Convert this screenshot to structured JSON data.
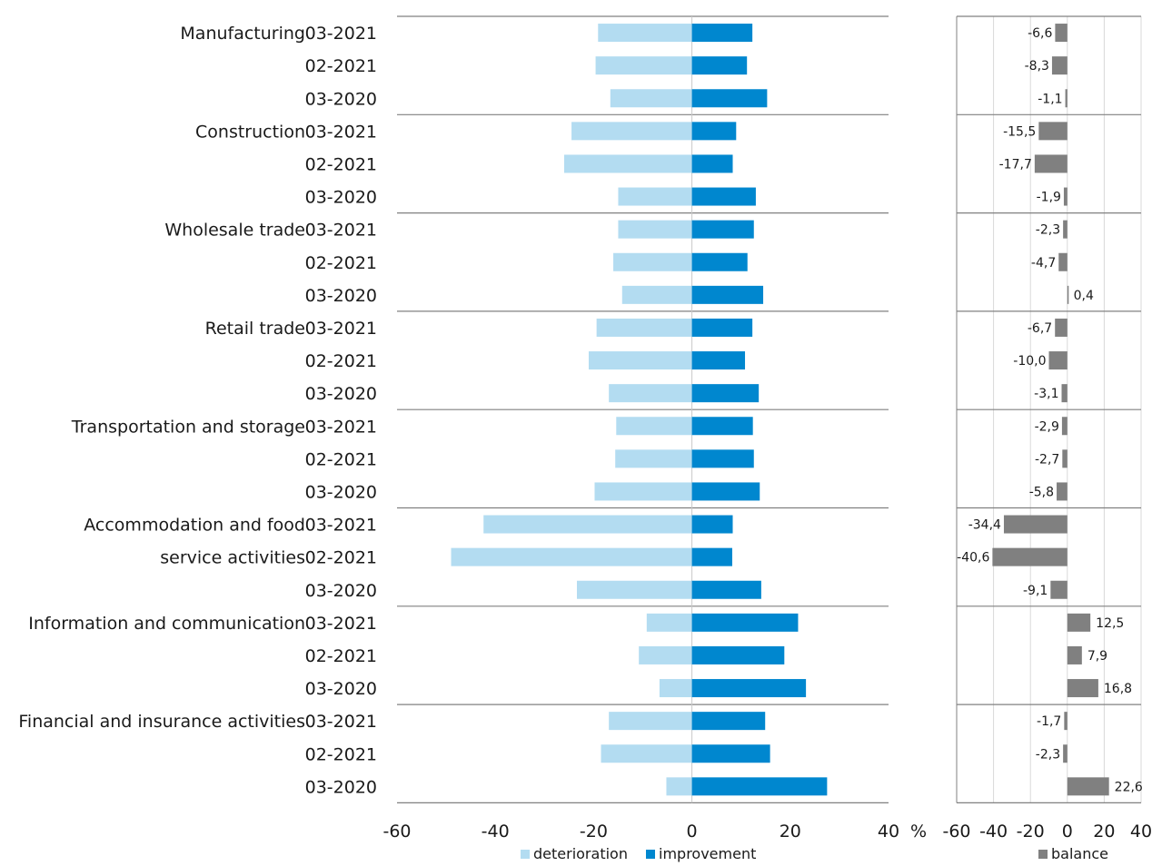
{
  "chart_data": [
    {
      "type": "bar",
      "orientation": "horizontal",
      "stacked": "diverging",
      "sectors": [
        "Manufacturing",
        "Construction",
        "Wholesale trade",
        "Retail trade",
        "Transportation and storage",
        "Accommodation and food service activities",
        "Information and communication",
        "Financial and insurance activities"
      ],
      "category_lines": [
        {
          "name": "Manufacturing",
          "period": "03-2021"
        },
        {
          "name": "",
          "period": "02-2021"
        },
        {
          "name": "",
          "period": "03-2020"
        },
        {
          "name": "Construction",
          "period": "03-2021"
        },
        {
          "name": "",
          "period": "02-2021"
        },
        {
          "name": "",
          "period": "03-2020"
        },
        {
          "name": "Wholesale trade",
          "period": "03-2021"
        },
        {
          "name": "",
          "period": "02-2021"
        },
        {
          "name": "",
          "period": "03-2020"
        },
        {
          "name": "Retail trade",
          "period": "03-2021"
        },
        {
          "name": "",
          "period": "02-2021"
        },
        {
          "name": "",
          "period": "03-2020"
        },
        {
          "name": "Transportation and storage",
          "period": "03-2021"
        },
        {
          "name": "",
          "period": "02-2021"
        },
        {
          "name": "",
          "period": "03-2020"
        },
        {
          "name": "Accommodation and food",
          "period": "03-2021"
        },
        {
          "name": "service activities",
          "period": "02-2021"
        },
        {
          "name": "",
          "period": "03-2020"
        },
        {
          "name": "Information and communication",
          "period": "03-2021"
        },
        {
          "name": "",
          "period": "02-2021"
        },
        {
          "name": "",
          "period": "03-2020"
        },
        {
          "name": "Financial and insurance activities",
          "period": "03-2021"
        },
        {
          "name": "",
          "period": "02-2021"
        },
        {
          "name": "",
          "period": "03-2020"
        }
      ],
      "series": [
        {
          "name": "deterioration",
          "color": "#b3dcf1",
          "values": [
            -19.1,
            -19.6,
            -16.6,
            -24.5,
            -26.0,
            -15.0,
            -15.0,
            -16.0,
            -14.2,
            -19.4,
            -21.0,
            -16.9,
            -15.4,
            -15.6,
            -19.8,
            -42.4,
            -49.0,
            -23.4,
            -9.2,
            -10.8,
            -6.6,
            -16.9,
            -18.5,
            -5.2
          ]
        },
        {
          "name": "improvement",
          "color": "#0087cf",
          "values": [
            12.3,
            11.2,
            15.3,
            9.0,
            8.3,
            13.0,
            12.6,
            11.3,
            14.5,
            12.3,
            10.8,
            13.6,
            12.4,
            12.6,
            13.8,
            8.3,
            8.2,
            14.1,
            21.6,
            18.8,
            23.2,
            14.9,
            15.9,
            27.5
          ]
        }
      ],
      "xlim": [
        -60,
        40
      ],
      "xticks": [
        -60,
        -40,
        -20,
        0,
        20,
        40
      ],
      "xlabel": "%",
      "legend": "bottom"
    },
    {
      "type": "bar",
      "orientation": "horizontal",
      "series": [
        {
          "name": "balance",
          "color": "#808080",
          "values": [
            -6.6,
            -8.3,
            -1.1,
            -15.5,
            -17.7,
            -1.9,
            -2.3,
            -4.7,
            0.4,
            -6.7,
            -10.0,
            -3.1,
            -2.9,
            -2.7,
            -5.8,
            -34.4,
            -40.6,
            -9.1,
            12.5,
            7.9,
            16.8,
            -1.7,
            -2.3,
            22.6
          ],
          "labels": [
            "-6,6",
            "-8,3",
            "-1,1",
            "-15,5",
            "-17,7",
            "-1,9",
            "-2,3",
            "-4,7",
            "0,4",
            "-6,7",
            "-10,0",
            "-3,1",
            "-2,9",
            "-2,7",
            "-5,8",
            "-34,4",
            "-40,6",
            "-9,1",
            "12,5",
            "7,9",
            "16,8",
            "-1,7",
            "-2,3",
            "22,6"
          ]
        }
      ],
      "xlim": [
        -60,
        40
      ],
      "xticks": [
        -60,
        -40,
        -20,
        0,
        20,
        40
      ],
      "legend": "bottom"
    }
  ]
}
